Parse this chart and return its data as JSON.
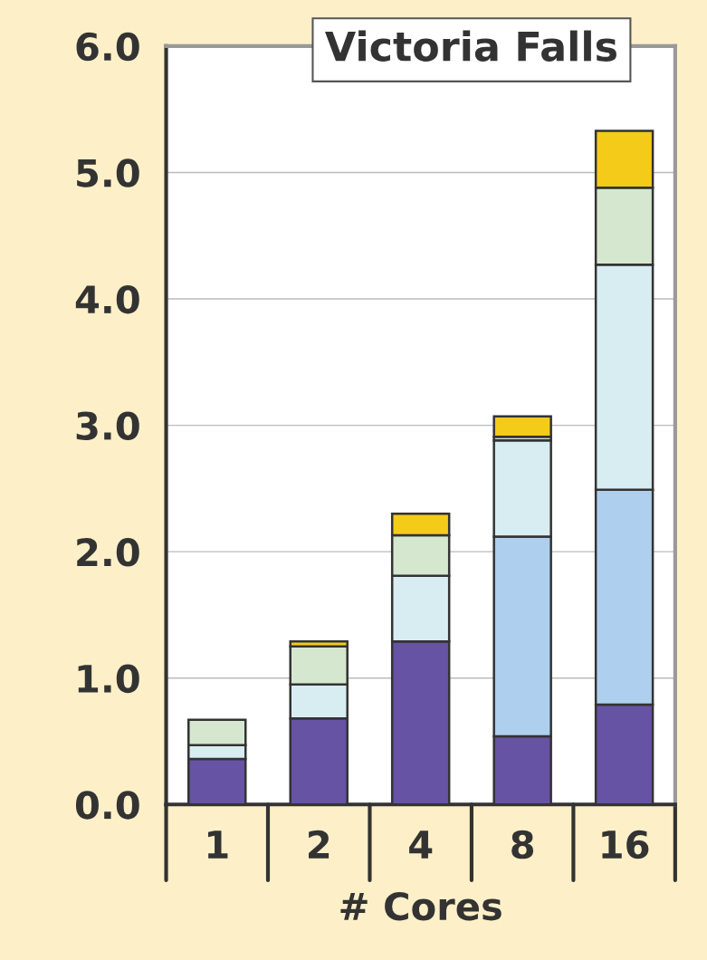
{
  "chart_data": {
    "type": "bar",
    "title": "Victoria Falls",
    "xlabel": "# Cores",
    "categories": [
      "1",
      "2",
      "4",
      "8",
      "16"
    ],
    "stacked": true,
    "ylim": [
      0,
      6
    ],
    "yticks": [
      {
        "value": 0,
        "label": "0.0"
      },
      {
        "value": 1,
        "label": "1.0"
      },
      {
        "value": 2,
        "label": "2.0"
      },
      {
        "value": 3,
        "label": "3.0"
      },
      {
        "value": 4,
        "label": "4.0"
      },
      {
        "value": 5,
        "label": "5.0"
      },
      {
        "value": 6,
        "label": "6.0"
      }
    ],
    "grid": "y",
    "series": [
      {
        "color": "#6753a3",
        "values": [
          0.36,
          0.68,
          1.29,
          0.54,
          0.79
        ]
      },
      {
        "color": "#aecfed",
        "values": [
          null,
          null,
          null,
          1.58,
          1.7
        ]
      },
      {
        "color": "#d7edf1",
        "values": [
          0.11,
          0.27,
          0.52,
          0.76,
          1.78
        ]
      },
      {
        "color": "#d5e8cf",
        "values": [
          0.2,
          0.3,
          0.32,
          0.03,
          0.61
        ]
      },
      {
        "color": "#f5cb1a",
        "values": [
          null,
          0.04,
          0.17,
          0.16,
          0.45
        ]
      }
    ]
  }
}
